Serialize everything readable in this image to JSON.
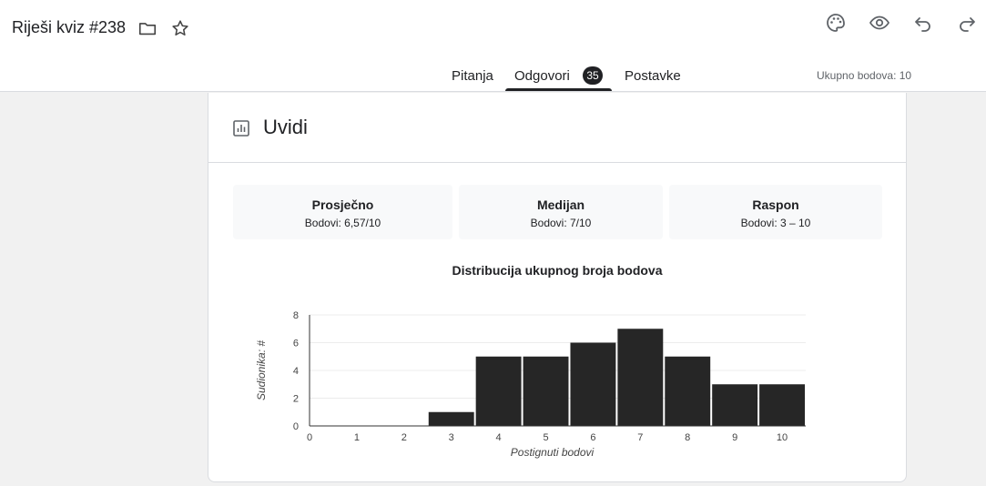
{
  "header": {
    "title": "Riješi kviz #238",
    "icons": [
      "folder-icon",
      "star-icon",
      "palette-icon",
      "eye-icon",
      "undo-icon",
      "redo-icon"
    ]
  },
  "tabs": {
    "questions": "Pitanja",
    "responses": "Odgovori",
    "responses_count": "35",
    "settings": "Postavke",
    "active": "responses"
  },
  "total_points": "Ukupno bodova: 10",
  "insights": {
    "title": "Uvidi",
    "stats": [
      {
        "label": "Prosječno",
        "value": "Bodovi: 6,57/10"
      },
      {
        "label": "Medijan",
        "value": "Bodovi: 7/10"
      },
      {
        "label": "Raspon",
        "value": "Bodovi: 3 – 10"
      }
    ]
  },
  "chart_data": {
    "type": "bar",
    "title": "Distribucija ukupnog broja bodova",
    "xlabel": "Postignuti bodovi",
    "ylabel": "Sudionika: #",
    "categories": [
      0,
      1,
      2,
      3,
      4,
      5,
      6,
      7,
      8,
      9,
      10
    ],
    "values": [
      0,
      0,
      0,
      1,
      5,
      5,
      6,
      7,
      5,
      3,
      3
    ],
    "ylim": [
      0,
      8
    ],
    "yticks": [
      0,
      2,
      4,
      6,
      8
    ],
    "grid": true,
    "bar_color": "#262626"
  }
}
